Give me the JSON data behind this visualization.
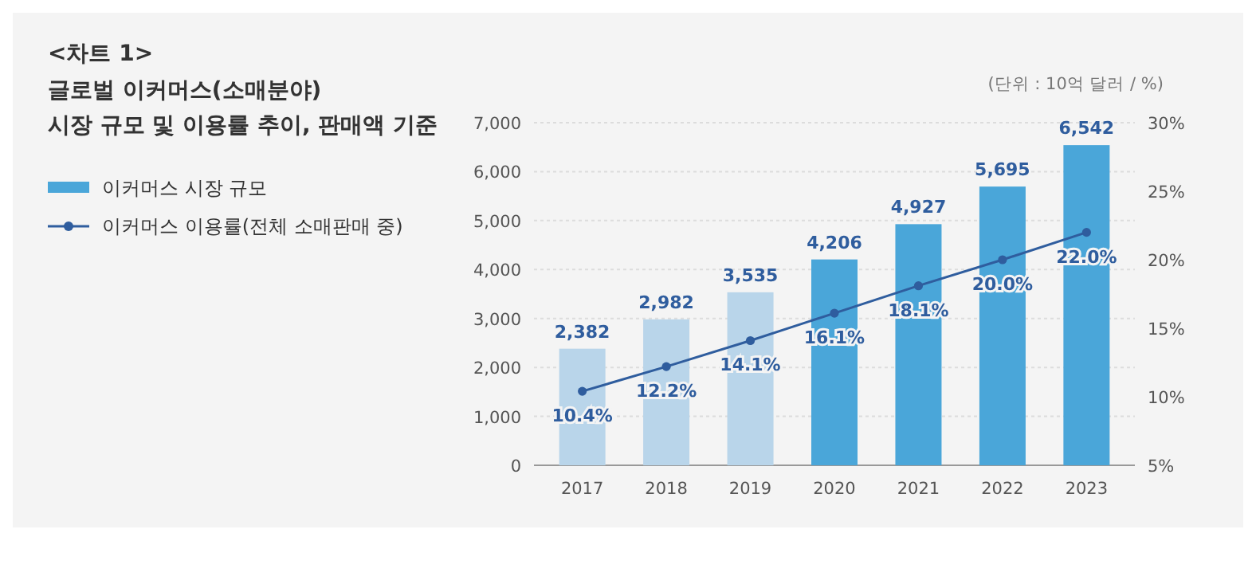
{
  "chart_data": {
    "type": "bar",
    "title": "<차트 1>",
    "subtitle": "글로벌 이커머스(소매분야)\n시장 규모 및 이용률 추이, 판매액 기준",
    "annotations": [
      "(단위 : 10억 달러 / %)"
    ],
    "categories": [
      "2017",
      "2018",
      "2019",
      "2020",
      "2021",
      "2022",
      "2023"
    ],
    "series": [
      {
        "name": "이커머스 시장 규모",
        "color": "#4aa6d9",
        "colors": [
          "#b9d5ea",
          "#b9d5ea",
          "#b9d5ea",
          "#4aa6d9",
          "#4aa6d9",
          "#4aa6d9",
          "#4aa6d9"
        ],
        "values": [
          2382,
          2982,
          3535,
          4206,
          4927,
          5695,
          6542
        ],
        "value_labels": [
          "2,382",
          "2,982",
          "3,535",
          "4,206",
          "4,927",
          "5,695",
          "6,542"
        ]
      },
      {
        "name": "이커머스 이용률(전체 소매판매 중)",
        "type": "line",
        "axis": "y2",
        "color": "#2f5d9e",
        "marker": "circle",
        "values": [
          10.4,
          12.2,
          14.1,
          16.1,
          18.1,
          20.0,
          22.0
        ],
        "value_labels": [
          "10.4%",
          "12.2%",
          "14.1%",
          "16.1%",
          "18.1%",
          "20.0%",
          "22.0%"
        ]
      }
    ],
    "ylim": [
      0,
      7000
    ],
    "yticks": [
      0,
      {
        "value": 1000,
        "label": "1,000"
      },
      {
        "value": 2000,
        "label": "2,000"
      },
      {
        "value": 3000,
        "label": "3,000"
      },
      {
        "value": 4000,
        "label": "4,000"
      },
      {
        "value": 5000,
        "label": "5,000"
      },
      {
        "value": 6000,
        "label": "6,000"
      },
      {
        "value": 7000,
        "label": "7,000"
      }
    ],
    "y2lim": [
      5,
      30
    ],
    "y2ticks": [
      {
        "value": 5,
        "label": "5%"
      },
      {
        "value": 10,
        "label": "10%"
      },
      {
        "value": 15,
        "label": "15%"
      },
      {
        "value": 20,
        "label": "20%"
      },
      {
        "value": 25,
        "label": "25%"
      },
      {
        "value": 30,
        "label": "30%"
      }
    ],
    "grid": "y",
    "legend": "left"
  }
}
